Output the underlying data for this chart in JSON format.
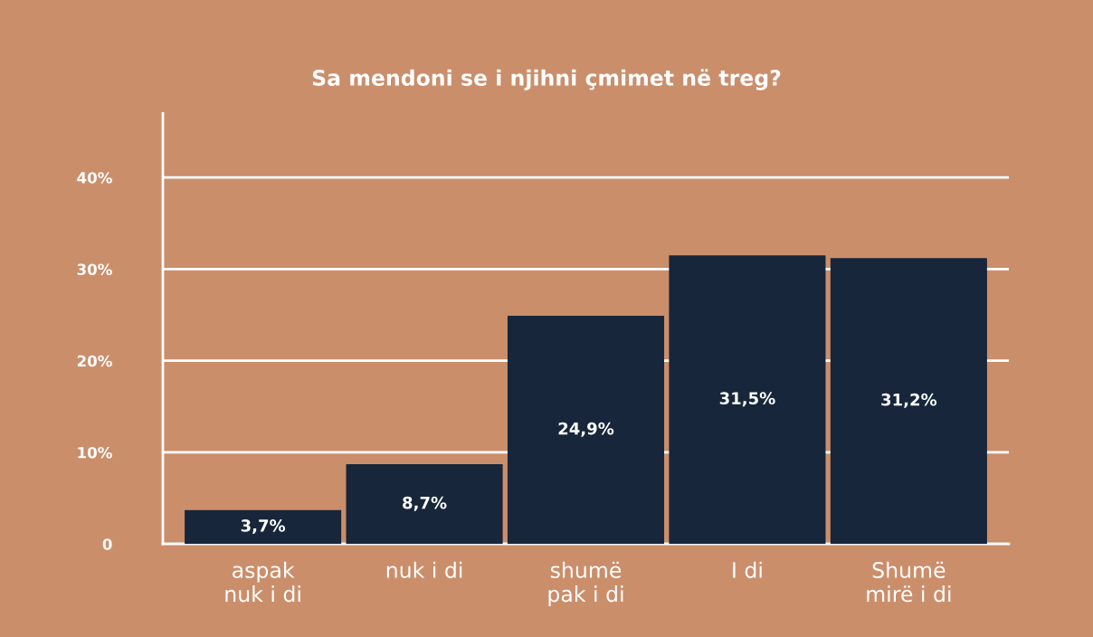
{
  "chart_data": {
    "type": "bar",
    "title": "Sa mendoni se i njihni çmimet në treg?",
    "categories": [
      "aspak\nnuk i di",
      "nuk i di",
      "shumë\npak i di",
      "I di",
      "Shumë\nmirë i di"
    ],
    "values": [
      3.7,
      8.7,
      24.9,
      31.5,
      31.2
    ],
    "value_labels": [
      "3,7%",
      "8,7%",
      "24,9%",
      "31,5%",
      "31,2%"
    ],
    "color": "#17263a",
    "ylim": [
      0,
      47
    ],
    "yticks": [
      0,
      {
        "value": 10,
        "label": "10%"
      },
      {
        "value": 20,
        "label": "20%"
      },
      {
        "value": 30,
        "label": "30%"
      },
      {
        "value": 40,
        "label": "40%"
      }
    ],
    "grid": "y",
    "legend": false
  }
}
